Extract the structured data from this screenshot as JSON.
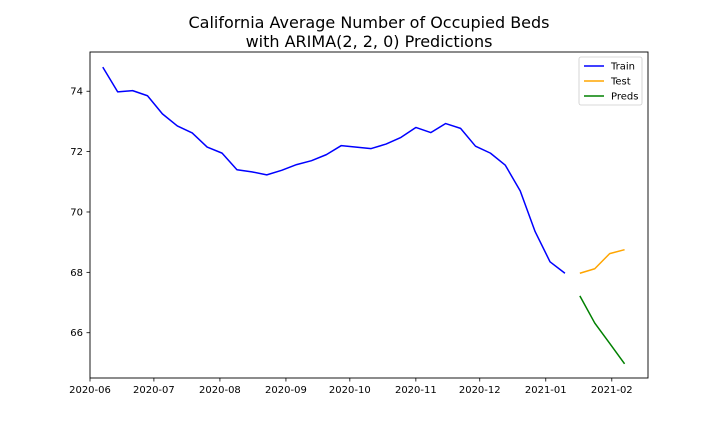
{
  "chart_data": {
    "type": "line",
    "title_line1": "California Average Number of Occupied Beds",
    "title_line2": "with ARIMA(2, 2, 0) Predictions",
    "xlabel": "",
    "ylabel": "",
    "xlim": [
      "2020-06-01",
      "2021-02-18"
    ],
    "ylim": [
      64.5,
      75.3
    ],
    "x_ticks": [
      "2020-06-01",
      "2020-07-01",
      "2020-08-01",
      "2020-09-01",
      "2020-10-01",
      "2020-11-01",
      "2020-12-01",
      "2021-01-01",
      "2021-02-01"
    ],
    "x_tick_labels": [
      "2020-06",
      "2020-07",
      "2020-08",
      "2020-09",
      "2020-10",
      "2020-11",
      "2020-12",
      "2021-01",
      "2021-02"
    ],
    "y_ticks": [
      66,
      68,
      70,
      72,
      74
    ],
    "grid": false,
    "legend_placement": "top-right",
    "series": [
      {
        "name": "Train",
        "color": "#0000ff",
        "x": [
          "2020-06-07",
          "2020-06-14",
          "2020-06-21",
          "2020-06-28",
          "2020-07-05",
          "2020-07-12",
          "2020-07-19",
          "2020-07-26",
          "2020-08-02",
          "2020-08-09",
          "2020-08-16",
          "2020-08-23",
          "2020-08-30",
          "2020-09-06",
          "2020-09-13",
          "2020-09-20",
          "2020-09-27",
          "2020-10-04",
          "2020-10-11",
          "2020-10-18",
          "2020-10-25",
          "2020-11-01",
          "2020-11-08",
          "2020-11-15",
          "2020-11-22",
          "2020-11-29",
          "2020-12-06",
          "2020-12-13",
          "2020-12-20",
          "2020-12-27",
          "2021-01-03",
          "2021-01-10"
        ],
        "y": [
          74.8,
          73.98,
          74.02,
          73.85,
          73.25,
          72.85,
          72.62,
          72.15,
          71.95,
          71.4,
          71.33,
          71.23,
          71.38,
          71.57,
          71.7,
          71.9,
          72.2,
          72.15,
          72.1,
          72.25,
          72.47,
          72.8,
          72.63,
          72.93,
          72.77,
          72.18,
          71.95,
          71.55,
          70.7,
          69.35,
          68.35,
          67.97
        ]
      },
      {
        "name": "Test",
        "color": "#ffa500",
        "x": [
          "2021-01-17",
          "2021-01-24",
          "2021-01-31",
          "2021-02-07"
        ],
        "y": [
          67.97,
          68.12,
          68.62,
          68.75
        ]
      },
      {
        "name": "Preds",
        "color": "#008000",
        "x": [
          "2021-01-17",
          "2021-01-24",
          "2021-01-31",
          "2021-02-07"
        ],
        "y": [
          67.22,
          66.32,
          65.65,
          64.97
        ]
      }
    ]
  }
}
